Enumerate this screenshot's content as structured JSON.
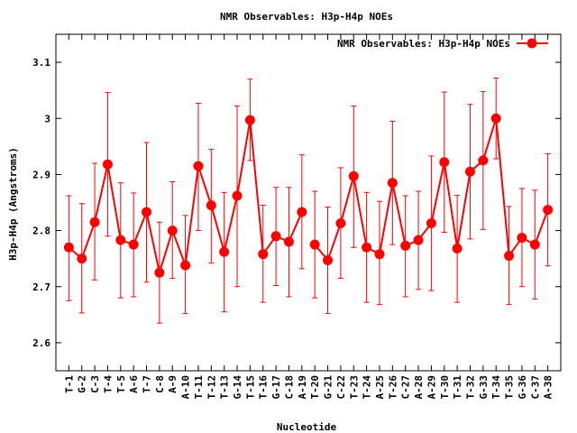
{
  "chart_data": {
    "type": "line",
    "title": "NMR Observables: H3p-H4p NOEs",
    "xlabel": "Nucleotide",
    "ylabel": "H3p-H4p (Angstroms)",
    "ylim": [
      2.55,
      3.15
    ],
    "yticks": [
      2.6,
      2.7,
      2.8,
      2.9,
      3.0,
      3.1
    ],
    "ytick_labels": [
      "2.6",
      "2.7",
      "2.8",
      "2.9",
      "3",
      "3.1"
    ],
    "xlim": [
      0,
      39
    ],
    "legend": {
      "label": "NMR Observables: H3p-H4p NOEs",
      "position": "top-right"
    },
    "grid": false,
    "color": "#ff0000",
    "series": [
      {
        "name": "NMR Observables: H3p-H4p NOEs",
        "segments": [
          [
            {
              "label": "T-1",
              "x": 1,
              "y": 2.77,
              "ylow": 2.675,
              "yhigh": 2.862
            },
            {
              "label": "G-2",
              "x": 2,
              "y": 2.75,
              "ylow": 2.653,
              "yhigh": 2.848
            },
            {
              "label": "C-3",
              "x": 3,
              "y": 2.815,
              "ylow": 2.712,
              "yhigh": 2.92
            },
            {
              "label": "T-4",
              "x": 4,
              "y": 2.918,
              "ylow": 2.79,
              "yhigh": 3.046
            },
            {
              "label": "T-5",
              "x": 5,
              "y": 2.783,
              "ylow": 2.68,
              "yhigh": 2.885
            },
            {
              "label": "A-6",
              "x": 6,
              "y": 2.775,
              "ylow": 2.682,
              "yhigh": 2.867
            },
            {
              "label": "T-7",
              "x": 7,
              "y": 2.833,
              "ylow": 2.708,
              "yhigh": 2.957
            },
            {
              "label": "C-8",
              "x": 8,
              "y": 2.725,
              "ylow": 2.635,
              "yhigh": 2.815
            },
            {
              "label": "A-9",
              "x": 9,
              "y": 2.8,
              "ylow": 2.715,
              "yhigh": 2.887
            },
            {
              "label": "A-10",
              "x": 10,
              "y": 2.738,
              "ylow": 2.652,
              "yhigh": 2.827
            },
            {
              "label": "T-11",
              "x": 11,
              "y": 2.915,
              "ylow": 2.8,
              "yhigh": 3.027
            },
            {
              "label": "T-12",
              "x": 12,
              "y": 2.845,
              "ylow": 2.742,
              "yhigh": 2.945
            },
            {
              "label": "T-13",
              "x": 13,
              "y": 2.762,
              "ylow": 2.655,
              "yhigh": 2.868
            },
            {
              "label": "G-14",
              "x": 14,
              "y": 2.862,
              "ylow": 2.7,
              "yhigh": 3.022
            },
            {
              "label": "T-15",
              "x": 15,
              "y": 2.997,
              "ylow": 2.925,
              "yhigh": 3.07
            },
            {
              "label": "T-16",
              "x": 16,
              "y": 2.758,
              "ylow": 2.672,
              "yhigh": 2.845
            },
            {
              "label": "G-17",
              "x": 17,
              "y": 2.79,
              "ylow": 2.702,
              "yhigh": 2.877
            },
            {
              "label": "C-18",
              "x": 18,
              "y": 2.78,
              "ylow": 2.682,
              "yhigh": 2.877
            },
            {
              "label": "A-19",
              "x": 19,
              "y": 2.833,
              "ylow": 2.732,
              "yhigh": 2.935
            }
          ],
          [
            {
              "label": "T-20",
              "x": 20,
              "y": 2.775,
              "ylow": 2.68,
              "yhigh": 2.87
            },
            {
              "label": "G-21",
              "x": 21,
              "y": 2.747,
              "ylow": 2.652,
              "yhigh": 2.842
            },
            {
              "label": "C-22",
              "x": 22,
              "y": 2.813,
              "ylow": 2.715,
              "yhigh": 2.912
            },
            {
              "label": "T-23",
              "x": 23,
              "y": 2.897,
              "ylow": 2.77,
              "yhigh": 3.022
            },
            {
              "label": "T-24",
              "x": 24,
              "y": 2.77,
              "ylow": 2.672,
              "yhigh": 2.868
            },
            {
              "label": "A-25",
              "x": 25,
              "y": 2.758,
              "ylow": 2.668,
              "yhigh": 2.852
            },
            {
              "label": "T-26",
              "x": 26,
              "y": 2.885,
              "ylow": 2.775,
              "yhigh": 2.995
            },
            {
              "label": "C-27",
              "x": 27,
              "y": 2.773,
              "ylow": 2.682,
              "yhigh": 2.862
            },
            {
              "label": "A-28",
              "x": 28,
              "y": 2.783,
              "ylow": 2.695,
              "yhigh": 2.87
            },
            {
              "label": "A-29",
              "x": 29,
              "y": 2.813,
              "ylow": 2.693,
              "yhigh": 2.933
            },
            {
              "label": "T-30",
              "x": 30,
              "y": 2.922,
              "ylow": 2.797,
              "yhigh": 3.047
            },
            {
              "label": "T-31",
              "x": 31,
              "y": 2.768,
              "ylow": 2.672,
              "yhigh": 2.863
            },
            {
              "label": "T-32",
              "x": 32,
              "y": 2.905,
              "ylow": 2.785,
              "yhigh": 3.025
            },
            {
              "label": "G-33",
              "x": 33,
              "y": 2.925,
              "ylow": 2.802,
              "yhigh": 3.048
            },
            {
              "label": "T-34",
              "x": 34,
              "y": 3.0,
              "ylow": 2.928,
              "yhigh": 3.072
            },
            {
              "label": "T-35",
              "x": 35,
              "y": 2.755,
              "ylow": 2.668,
              "yhigh": 2.843
            },
            {
              "label": "G-36",
              "x": 36,
              "y": 2.787,
              "ylow": 2.7,
              "yhigh": 2.875
            },
            {
              "label": "C-37",
              "x": 37,
              "y": 2.775,
              "ylow": 2.678,
              "yhigh": 2.872
            },
            {
              "label": "A-38",
              "x": 38,
              "y": 2.837,
              "ylow": 2.737,
              "yhigh": 2.937
            }
          ]
        ]
      }
    ]
  }
}
